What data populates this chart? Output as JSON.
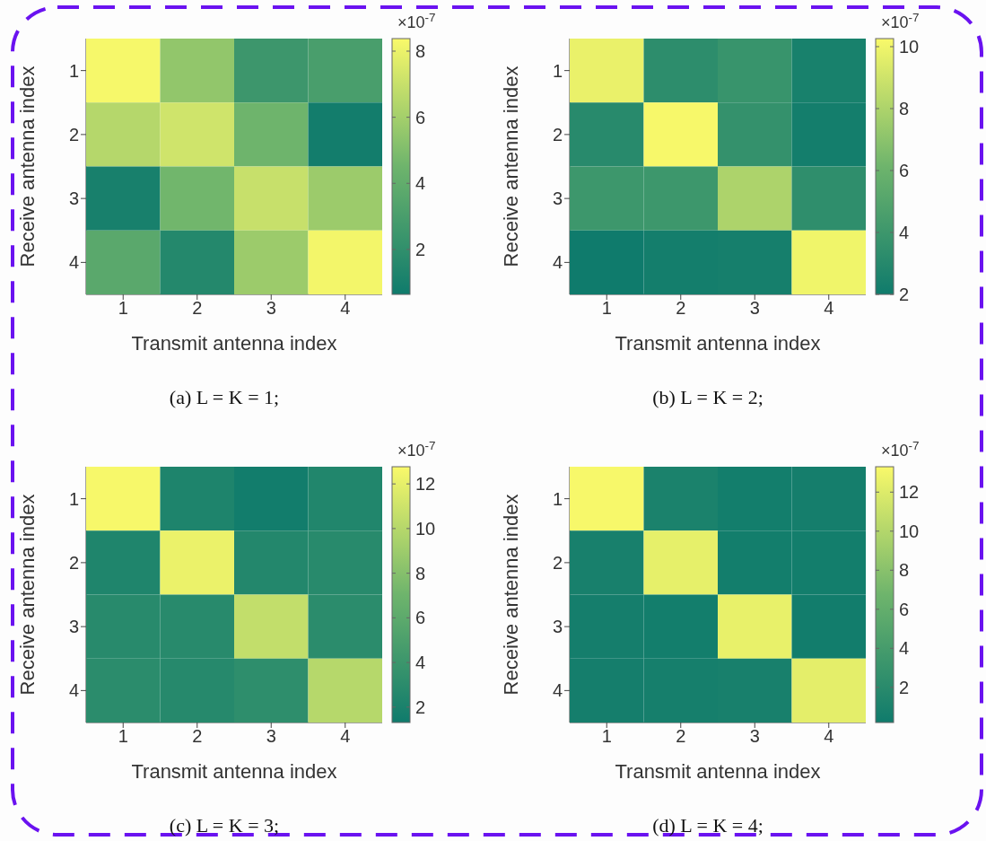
{
  "chart_data": [
    {
      "type": "heatmap",
      "title": "(a) L = K = 1;",
      "xlabel": "Transmit antenna index",
      "ylabel": "Receive antenna index",
      "categories": [
        "1",
        "2",
        "3",
        "4"
      ],
      "y_categories": [
        "1",
        "2",
        "3",
        "4"
      ],
      "cells": [
        [
          8.3,
          5.5,
          2.5,
          3.0
        ],
        [
          6.5,
          7.2,
          4.5,
          0.8
        ],
        [
          1.0,
          4.6,
          7.0,
          5.8
        ],
        [
          3.7,
          1.5,
          5.8,
          8.2
        ]
      ],
      "clim": [
        0.64,
        8.38
      ],
      "cticks": [
        2,
        4,
        6,
        8
      ],
      "clabel": "×10$^{-7}$"
    },
    {
      "type": "heatmap",
      "title": "(b) L = K = 2;",
      "xlabel": "Transmit antenna index",
      "ylabel": "Receive antenna index",
      "categories": [
        "1",
        "2",
        "3",
        "4"
      ],
      "y_categories": [
        "1",
        "2",
        "3",
        "4"
      ],
      "cells": [
        [
          9.8,
          3.3,
          3.8,
          2.4
        ],
        [
          3.1,
          10.2,
          3.6,
          2.2
        ],
        [
          4.0,
          4.0,
          8.0,
          3.4
        ],
        [
          2.0,
          2.2,
          2.3,
          10.0
        ]
      ],
      "clim": [
        2,
        10.26
      ],
      "cticks": [
        2,
        4,
        6,
        8,
        10
      ],
      "clabel": "×10$^{-7}$"
    },
    {
      "type": "heatmap",
      "title": "(c) L = K = 3;",
      "xlabel": "Transmit antenna index",
      "ylabel": "Receive antenna index",
      "categories": [
        "1",
        "2",
        "3",
        "4"
      ],
      "y_categories": [
        "1",
        "2",
        "3",
        "4"
      ],
      "cells": [
        [
          12.7,
          2.2,
          1.5,
          2.4
        ],
        [
          2.3,
          12.2,
          2.5,
          2.8
        ],
        [
          2.8,
          2.8,
          10.5,
          3.0
        ],
        [
          3.0,
          2.7,
          3.2,
          10.0
        ]
      ],
      "clim": [
        1.31,
        12.77
      ],
      "cticks": [
        2,
        4,
        6,
        8,
        10,
        12
      ],
      "clabel": "×10$^{-7}$"
    },
    {
      "type": "heatmap",
      "title": "(d) L = K = 4;",
      "xlabel": "Transmit antenna index",
      "ylabel": "Receive antenna index",
      "categories": [
        "1",
        "2",
        "3",
        "4"
      ],
      "y_categories": [
        "1",
        "2",
        "3",
        "4"
      ],
      "cells": [
        [
          13.2,
          1.0,
          0.5,
          0.6
        ],
        [
          0.8,
          12.4,
          0.5,
          0.5
        ],
        [
          0.6,
          0.5,
          12.5,
          0.4
        ],
        [
          0.6,
          0.7,
          0.8,
          12.3
        ]
      ],
      "clim": [
        0.2,
        13.3
      ],
      "cticks": [
        2,
        4,
        6,
        8,
        10,
        12
      ],
      "clabel": "×10$^{-7}$"
    }
  ]
}
